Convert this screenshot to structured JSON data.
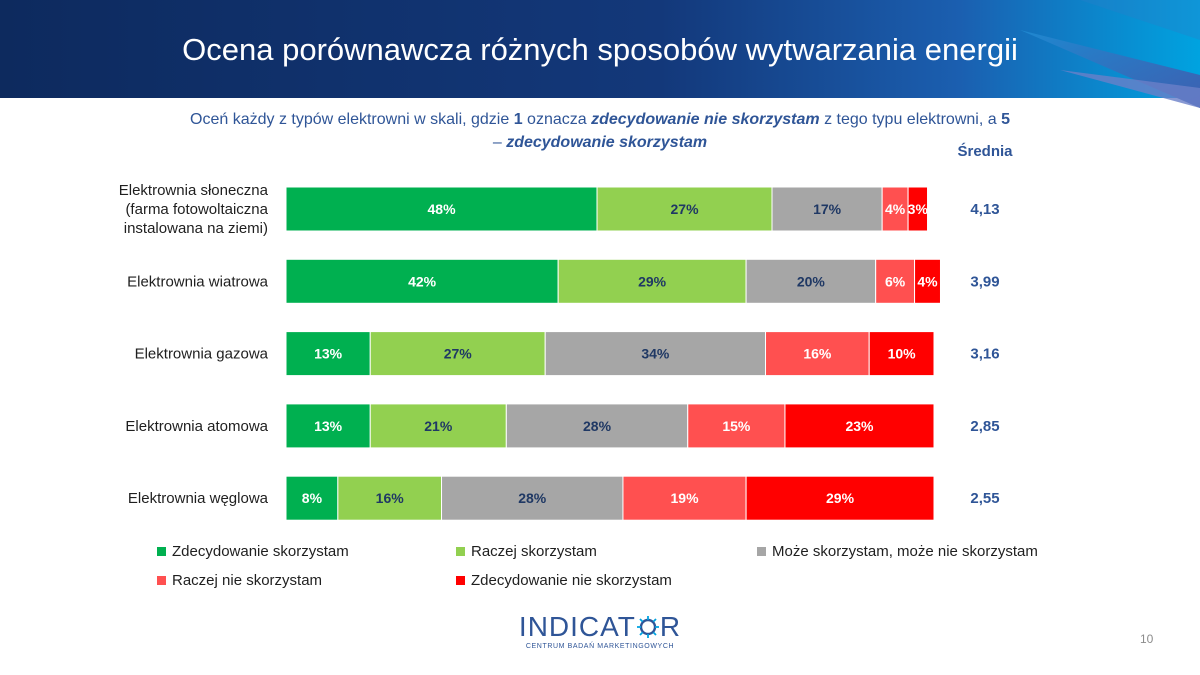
{
  "title": "Ocena porównawcza różnych sposobów wytwarzania energii",
  "question": {
    "p1": "Oceń każdy z typów elektrowni w  skali, gdzie ",
    "p2": "1",
    "p3": " oznacza ",
    "p4": "zdecydowanie  nie skorzystam",
    "p5": " z tego typu elektrowni, a ",
    "p6": "5",
    "p7": " – ",
    "p8": "zdecydowanie  skorzystam"
  },
  "average_header": "Średnia",
  "colors": {
    "banner_dark": "#0D2A5E",
    "banner_mid": "#1E4D9B",
    "banner_light": "#00A3E0",
    "accent_text": "#2F5597",
    "strong_yes": "#00B050",
    "yes": "#92D050",
    "neutral": "#A6A6A6",
    "no": "#FF5050",
    "strong_no": "#FF0000"
  },
  "chart_data": {
    "type": "bar",
    "orientation": "horizontal",
    "stacked": true,
    "percent": true,
    "categories": [
      [
        "Elektrownia słoneczna",
        "(farma fotowoltaiczna",
        "instalowana na ziemi)"
      ],
      [
        "Elektrownia wiatrowa"
      ],
      [
        "Elektrownia gazowa"
      ],
      [
        "Elektrownia atomowa"
      ],
      [
        "Elektrownia węglowa"
      ]
    ],
    "series": [
      {
        "name": "Zdecydowanie skorzystam",
        "color": "#00B050",
        "label_color": "#ffffff",
        "values": [
          48,
          42,
          13,
          13,
          8
        ]
      },
      {
        "name": "Raczej skorzystam",
        "color": "#92D050",
        "label_color": "#1F3864",
        "values": [
          27,
          29,
          27,
          21,
          16
        ]
      },
      {
        "name": "Może skorzystam, może nie skorzystam",
        "color": "#A6A6A6",
        "label_color": "#1F3864",
        "values": [
          17,
          20,
          34,
          28,
          28
        ]
      },
      {
        "name": "Raczej nie skorzystam",
        "color": "#FF5050",
        "label_color": "#ffffff",
        "values": [
          4,
          6,
          16,
          15,
          19
        ]
      },
      {
        "name": "Zdecydowanie nie skorzystam",
        "color": "#FF0000",
        "label_color": "#ffffff",
        "values": [
          3,
          4,
          10,
          23,
          29
        ]
      }
    ],
    "averages": [
      "4,13",
      "3,99",
      "3,16",
      "2,85",
      "2,55"
    ]
  },
  "logo": {
    "word_left": "INDICAT",
    "word_right": "R",
    "subtitle": "CENTRUM BADAŃ MARKETINGOWYCH"
  },
  "page_number": "10"
}
